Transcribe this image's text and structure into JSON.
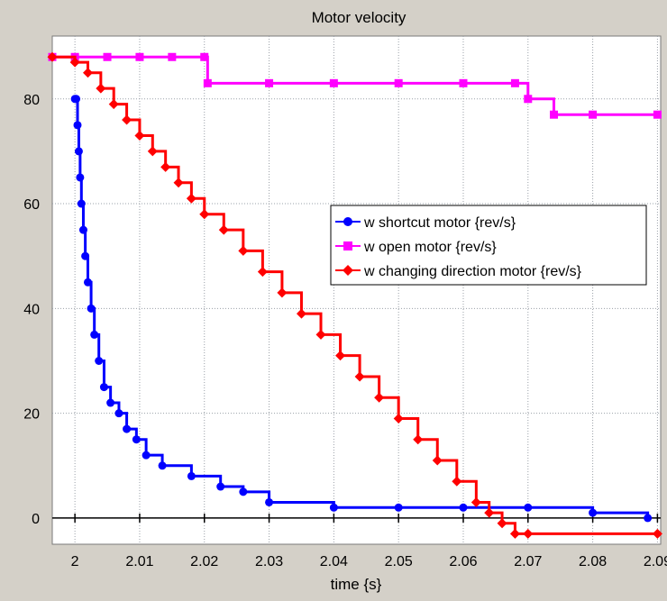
{
  "chart_data": {
    "type": "line",
    "title": "Motor velocity",
    "xlabel": "time {s}",
    "ylabel": "",
    "xlim": [
      1.9965,
      2.0905
    ],
    "ylim": [
      -5,
      92
    ],
    "xticks": [
      2,
      2.01,
      2.02,
      2.03,
      2.04,
      2.05,
      2.06,
      2.07,
      2.08,
      2.09
    ],
    "xtick_labels": [
      "2",
      "2.01",
      "2.02",
      "2.03",
      "2.04",
      "2.05",
      "2.06",
      "2.07",
      "2.08",
      "2.09"
    ],
    "yticks": [
      0,
      20,
      40,
      60,
      80
    ],
    "ytick_labels": [
      "0",
      "20",
      "40",
      "60",
      "80"
    ],
    "grid": true,
    "legend_position": "center-right",
    "series": [
      {
        "name": "w shortcut motor {rev/s}",
        "color": "#0000ff",
        "marker": "circle",
        "x": [
          2.0,
          2.0002,
          2.0004,
          2.0006,
          2.0008,
          2.001,
          2.0013,
          2.0016,
          2.002,
          2.0025,
          2.003,
          2.0037,
          2.0045,
          2.0055,
          2.0068,
          2.008,
          2.0095,
          2.011,
          2.0135,
          2.018,
          2.0225,
          2.026,
          2.03,
          2.04,
          2.05,
          2.06,
          2.07,
          2.08,
          2.0885
        ],
        "y": [
          80,
          80,
          75,
          70,
          65,
          60,
          55,
          50,
          45,
          40,
          35,
          30,
          25,
          22,
          20,
          17,
          15,
          12,
          10,
          8,
          6,
          5,
          3,
          2,
          2,
          2,
          2,
          1,
          0
        ]
      },
      {
        "name": "w open motor {rev/s}",
        "color": "#ff00ff",
        "marker": "square",
        "x": [
          1.9965,
          2.0,
          2.005,
          2.01,
          2.015,
          2.02,
          2.0205,
          2.03,
          2.04,
          2.05,
          2.06,
          2.068,
          2.07,
          2.074,
          2.08,
          2.09
        ],
        "y": [
          88,
          88,
          88,
          88,
          88,
          88,
          83,
          83,
          83,
          83,
          83,
          83,
          80,
          77,
          77,
          77
        ]
      },
      {
        "name": "w changing direction motor {rev/s}",
        "color": "#ff0000",
        "marker": "diamond",
        "x": [
          1.9965,
          2.0,
          2.002,
          2.004,
          2.006,
          2.008,
          2.01,
          2.012,
          2.014,
          2.016,
          2.018,
          2.02,
          2.023,
          2.026,
          2.029,
          2.032,
          2.035,
          2.038,
          2.041,
          2.044,
          2.047,
          2.05,
          2.053,
          2.056,
          2.059,
          2.062,
          2.064,
          2.066,
          2.068,
          2.07,
          2.09
        ],
        "y": [
          88,
          87,
          85,
          82,
          79,
          76,
          73,
          70,
          67,
          64,
          61,
          58,
          55,
          51,
          47,
          43,
          39,
          35,
          31,
          27,
          23,
          19,
          15,
          11,
          7,
          3,
          1,
          -1,
          -3,
          -3,
          -3
        ]
      }
    ]
  }
}
